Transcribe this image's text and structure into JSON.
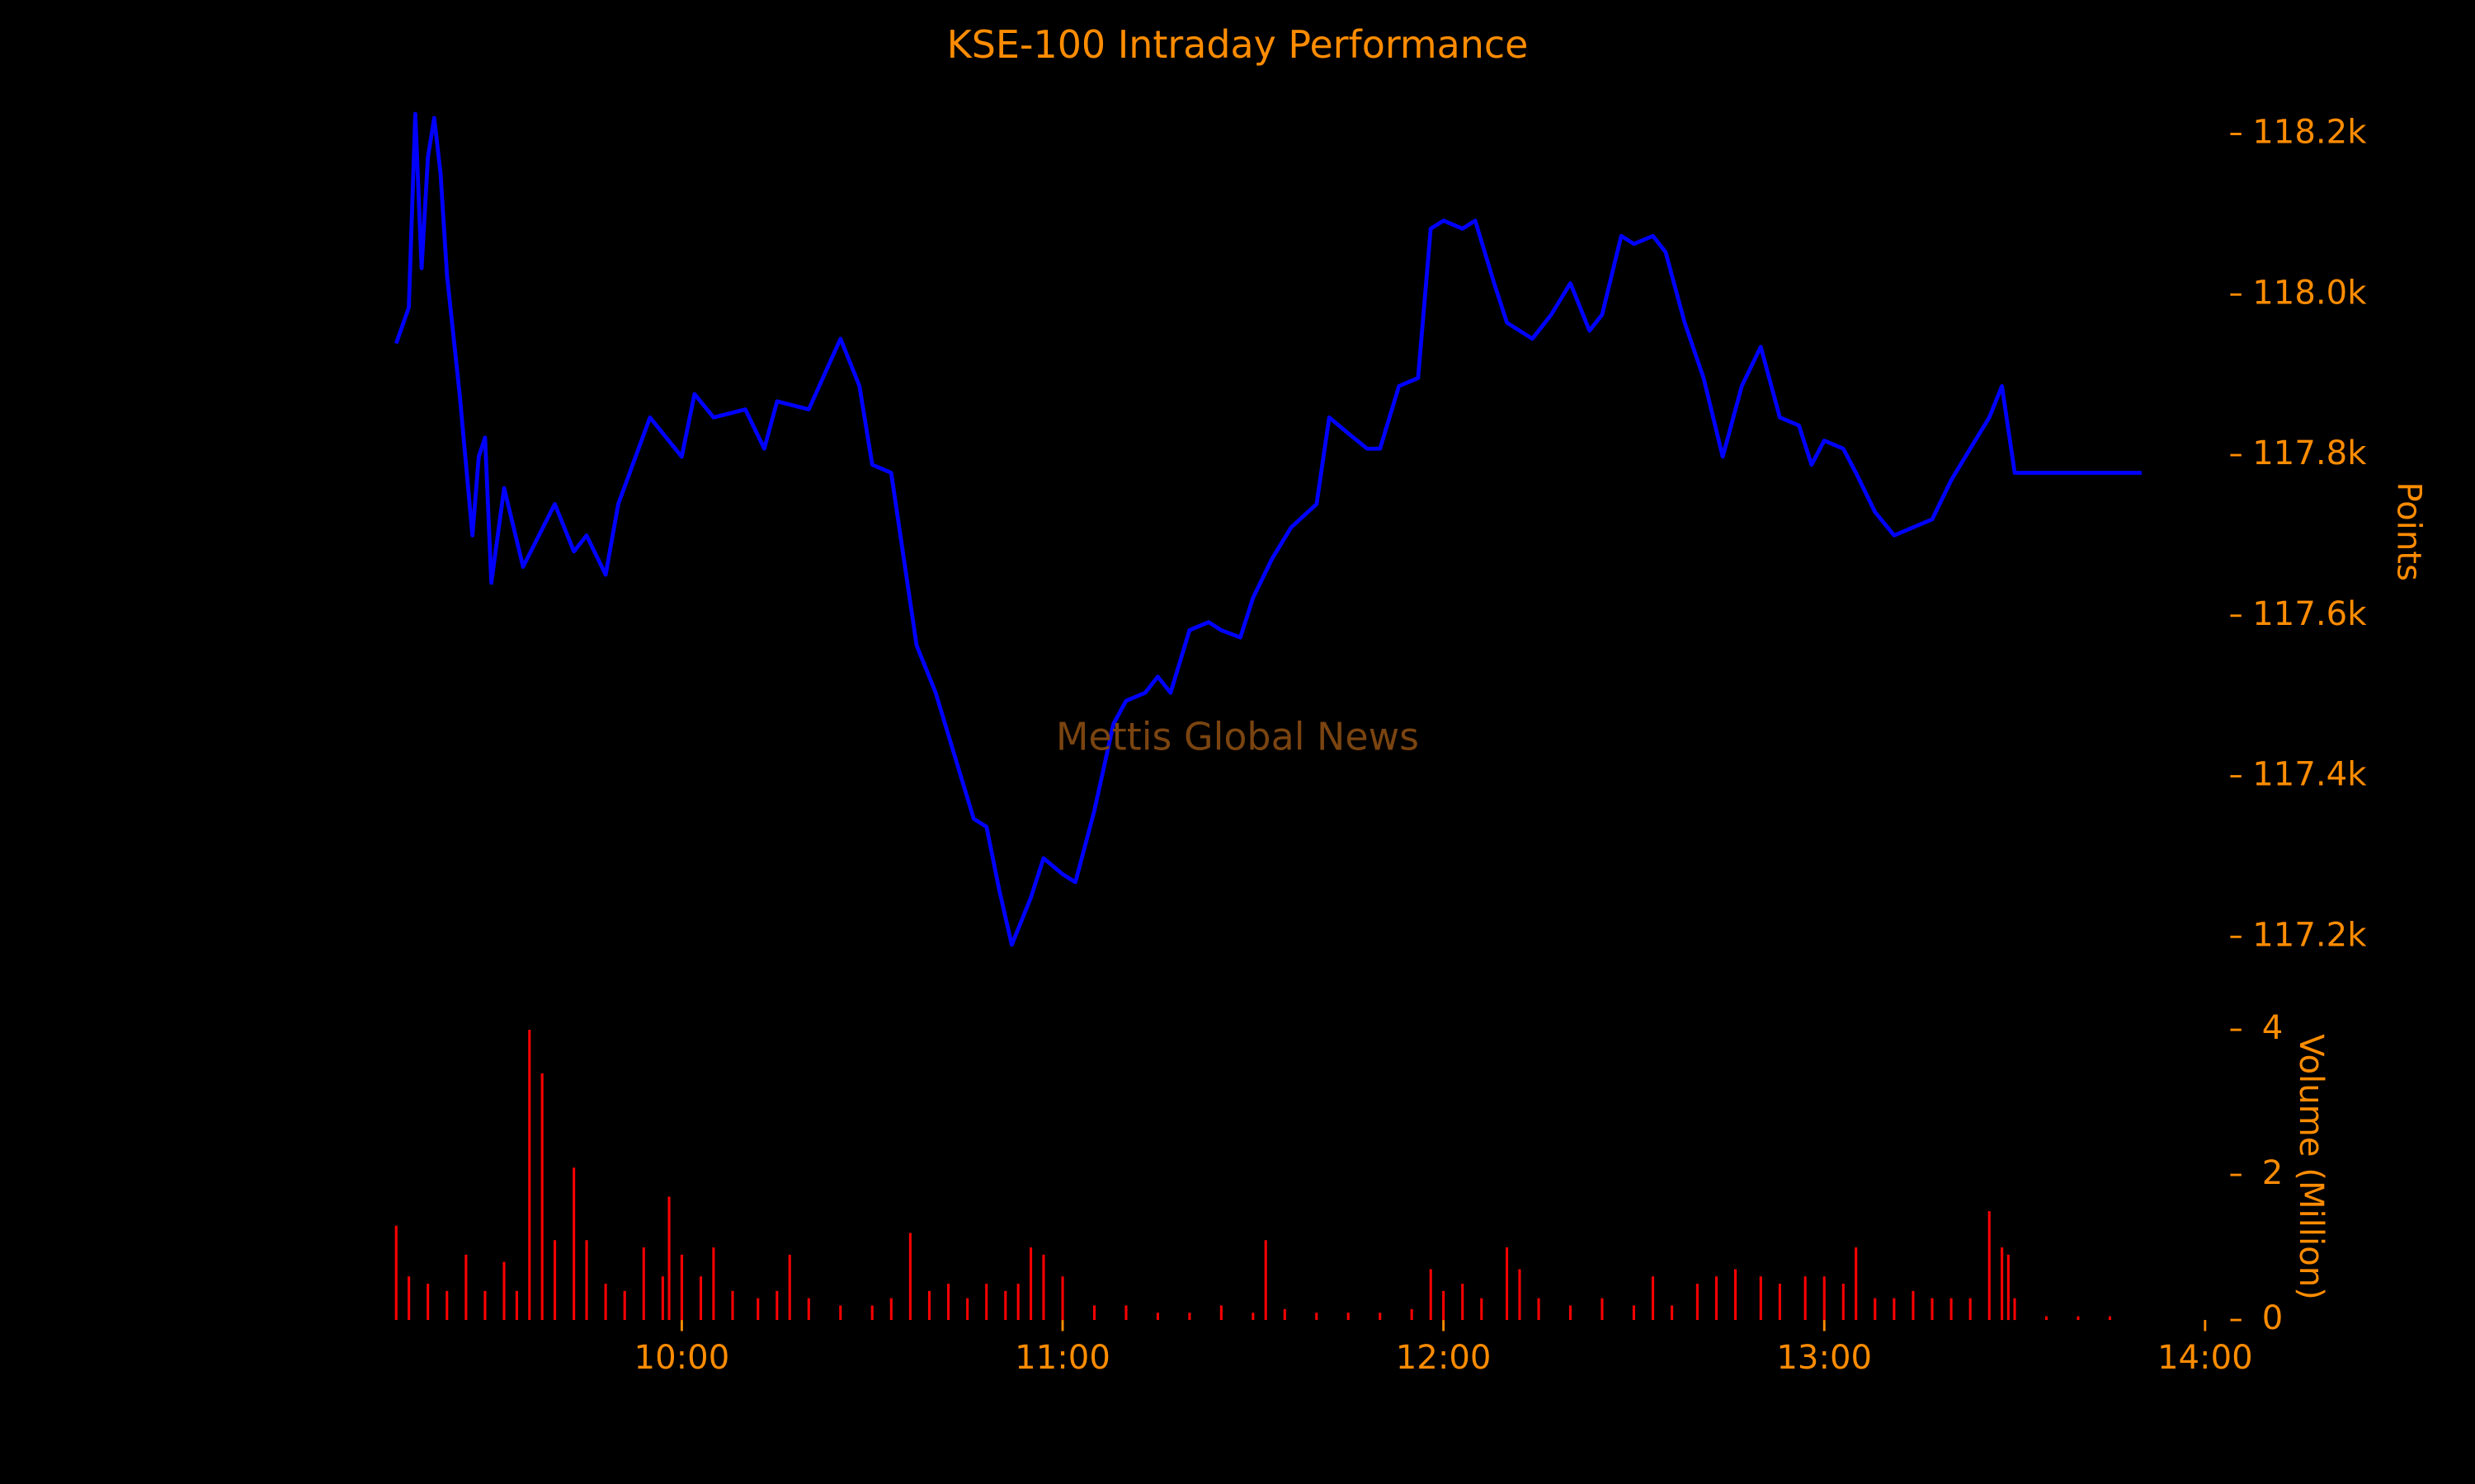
{
  "chart_data": [
    {
      "type": "line",
      "title": "KSE-100 Intraday Performance",
      "annotation": "Mettis Global News",
      "ylabel": "Points",
      "color": "#0000ff",
      "x": [
        "09:15",
        "09:17",
        "09:18",
        "09:19",
        "09:20",
        "09:21",
        "09:22",
        "09:23",
        "09:25",
        "09:27",
        "09:28",
        "09:29",
        "09:30",
        "09:32",
        "09:35",
        "09:40",
        "09:43",
        "09:45",
        "09:48",
        "09:50",
        "09:55",
        "10:00",
        "10:02",
        "10:05",
        "10:10",
        "10:13",
        "10:15",
        "10:20",
        "10:25",
        "10:28",
        "10:30",
        "10:33",
        "10:37",
        "10:40",
        "10:43",
        "10:46",
        "10:48",
        "10:50",
        "10:52",
        "10:55",
        "10:57",
        "11:00",
        "11:02",
        "11:05",
        "11:08",
        "11:10",
        "11:13",
        "11:15",
        "11:17",
        "11:20",
        "11:23",
        "11:25",
        "11:28",
        "11:30",
        "11:33",
        "11:36",
        "11:40",
        "11:42",
        "11:45",
        "11:48",
        "11:50",
        "11:53",
        "11:56",
        "11:58",
        "12:00",
        "12:03",
        "12:05",
        "12:08",
        "12:10",
        "12:14",
        "12:17",
        "12:20",
        "12:23",
        "12:25",
        "12:28",
        "12:30",
        "12:33",
        "12:35",
        "12:38",
        "12:41",
        "12:44",
        "12:47",
        "12:50",
        "12:53",
        "12:56",
        "12:58",
        "13:00",
        "13:03",
        "13:05",
        "13:08",
        "13:11",
        "13:14",
        "13:17",
        "13:20",
        "13:23",
        "13:26",
        "13:28",
        "13:30",
        "13:50"
      ],
      "values": [
        117939,
        117984,
        118225,
        118033,
        118171,
        118220,
        118151,
        118024,
        117876,
        117700,
        117798,
        117822,
        117641,
        117759,
        117661,
        117739,
        117680,
        117700,
        117651,
        117739,
        117847,
        117798,
        117876,
        117847,
        117857,
        117808,
        117867,
        117857,
        117945,
        117886,
        117788,
        117778,
        117563,
        117504,
        117425,
        117347,
        117337,
        117259,
        117190,
        117249,
        117298,
        117278,
        117268,
        117357,
        117465,
        117494,
        117504,
        117524,
        117504,
        117582,
        117592,
        117582,
        117573,
        117622,
        117671,
        117710,
        117739,
        117847,
        117827,
        117808,
        117808,
        117886,
        117896,
        118082,
        118092,
        118082,
        118092,
        118014,
        117965,
        117945,
        117975,
        118014,
        117955,
        117975,
        118073,
        118063,
        118073,
        118053,
        117965,
        117896,
        117798,
        117886,
        117935,
        117847,
        117837,
        117788,
        117818,
        117808,
        117778,
        117729,
        117700,
        117710,
        117720,
        117769,
        117808,
        117847,
        117886,
        117778,
        117778
      ],
      "xlim": [
        "09:15",
        "14:00"
      ],
      "ylim": [
        117150,
        118250
      ],
      "yticks": [
        {
          "value": 117200,
          "label": "117.2k"
        },
        {
          "value": 117400,
          "label": "117.4k"
        },
        {
          "value": 117600,
          "label": "117.6k"
        },
        {
          "value": 117800,
          "label": "117.8k"
        },
        {
          "value": 118000,
          "label": "118.0k"
        },
        {
          "value": 118200,
          "label": "118.2k"
        }
      ]
    },
    {
      "type": "bar",
      "ylabel": "Volume (Million)",
      "color": "#ff0000",
      "x": [
        "09:15",
        "09:17",
        "09:20",
        "09:23",
        "09:26",
        "09:29",
        "09:32",
        "09:34",
        "09:36",
        "09:38",
        "09:40",
        "09:43",
        "09:45",
        "09:48",
        "09:51",
        "09:54",
        "09:57",
        "09:58",
        "10:00",
        "10:03",
        "10:05",
        "10:08",
        "10:12",
        "10:15",
        "10:17",
        "10:20",
        "10:25",
        "10:30",
        "10:33",
        "10:36",
        "10:39",
        "10:42",
        "10:45",
        "10:48",
        "10:51",
        "10:53",
        "10:55",
        "10:57",
        "11:00",
        "11:05",
        "11:10",
        "11:15",
        "11:20",
        "11:25",
        "11:30",
        "11:32",
        "11:35",
        "11:40",
        "11:45",
        "11:50",
        "11:55",
        "11:58",
        "12:00",
        "12:03",
        "12:06",
        "12:10",
        "12:12",
        "12:15",
        "12:20",
        "12:25",
        "12:30",
        "12:33",
        "12:36",
        "12:40",
        "12:43",
        "12:46",
        "12:50",
        "12:53",
        "12:57",
        "13:00",
        "13:03",
        "13:05",
        "13:08",
        "13:11",
        "13:14",
        "13:17",
        "13:20",
        "13:23",
        "13:26",
        "13:28",
        "13:29",
        "13:30",
        "13:35",
        "13:40",
        "13:45"
      ],
      "values": [
        1.3,
        0.6,
        0.5,
        0.4,
        0.9,
        0.4,
        0.8,
        0.4,
        4.0,
        3.4,
        1.1,
        2.1,
        1.1,
        0.5,
        0.4,
        1.0,
        0.6,
        1.7,
        0.9,
        0.6,
        1.0,
        0.4,
        0.3,
        0.4,
        0.9,
        0.3,
        0.2,
        0.2,
        0.3,
        1.2,
        0.4,
        0.5,
        0.3,
        0.5,
        0.4,
        0.5,
        1.0,
        0.9,
        0.6,
        0.2,
        0.2,
        0.1,
        0.1,
        0.2,
        0.1,
        1.1,
        0.15,
        0.1,
        0.1,
        0.1,
        0.15,
        0.7,
        0.4,
        0.5,
        0.3,
        1.0,
        0.7,
        0.3,
        0.2,
        0.3,
        0.2,
        0.6,
        0.2,
        0.5,
        0.6,
        0.7,
        0.6,
        0.5,
        0.6,
        0.6,
        0.5,
        1.0,
        0.3,
        0.3,
        0.4,
        0.3,
        0.3,
        0.3,
        1.5,
        1.0,
        0.9,
        0.3,
        0.05,
        0.05,
        0.05
      ],
      "xlim": [
        "09:15",
        "14:00"
      ],
      "ylim": [
        0,
        4
      ],
      "yticks": [
        0,
        2,
        4
      ],
      "xticks": [
        "10:00",
        "11:00",
        "12:00",
        "13:00",
        "14:00"
      ]
    }
  ]
}
